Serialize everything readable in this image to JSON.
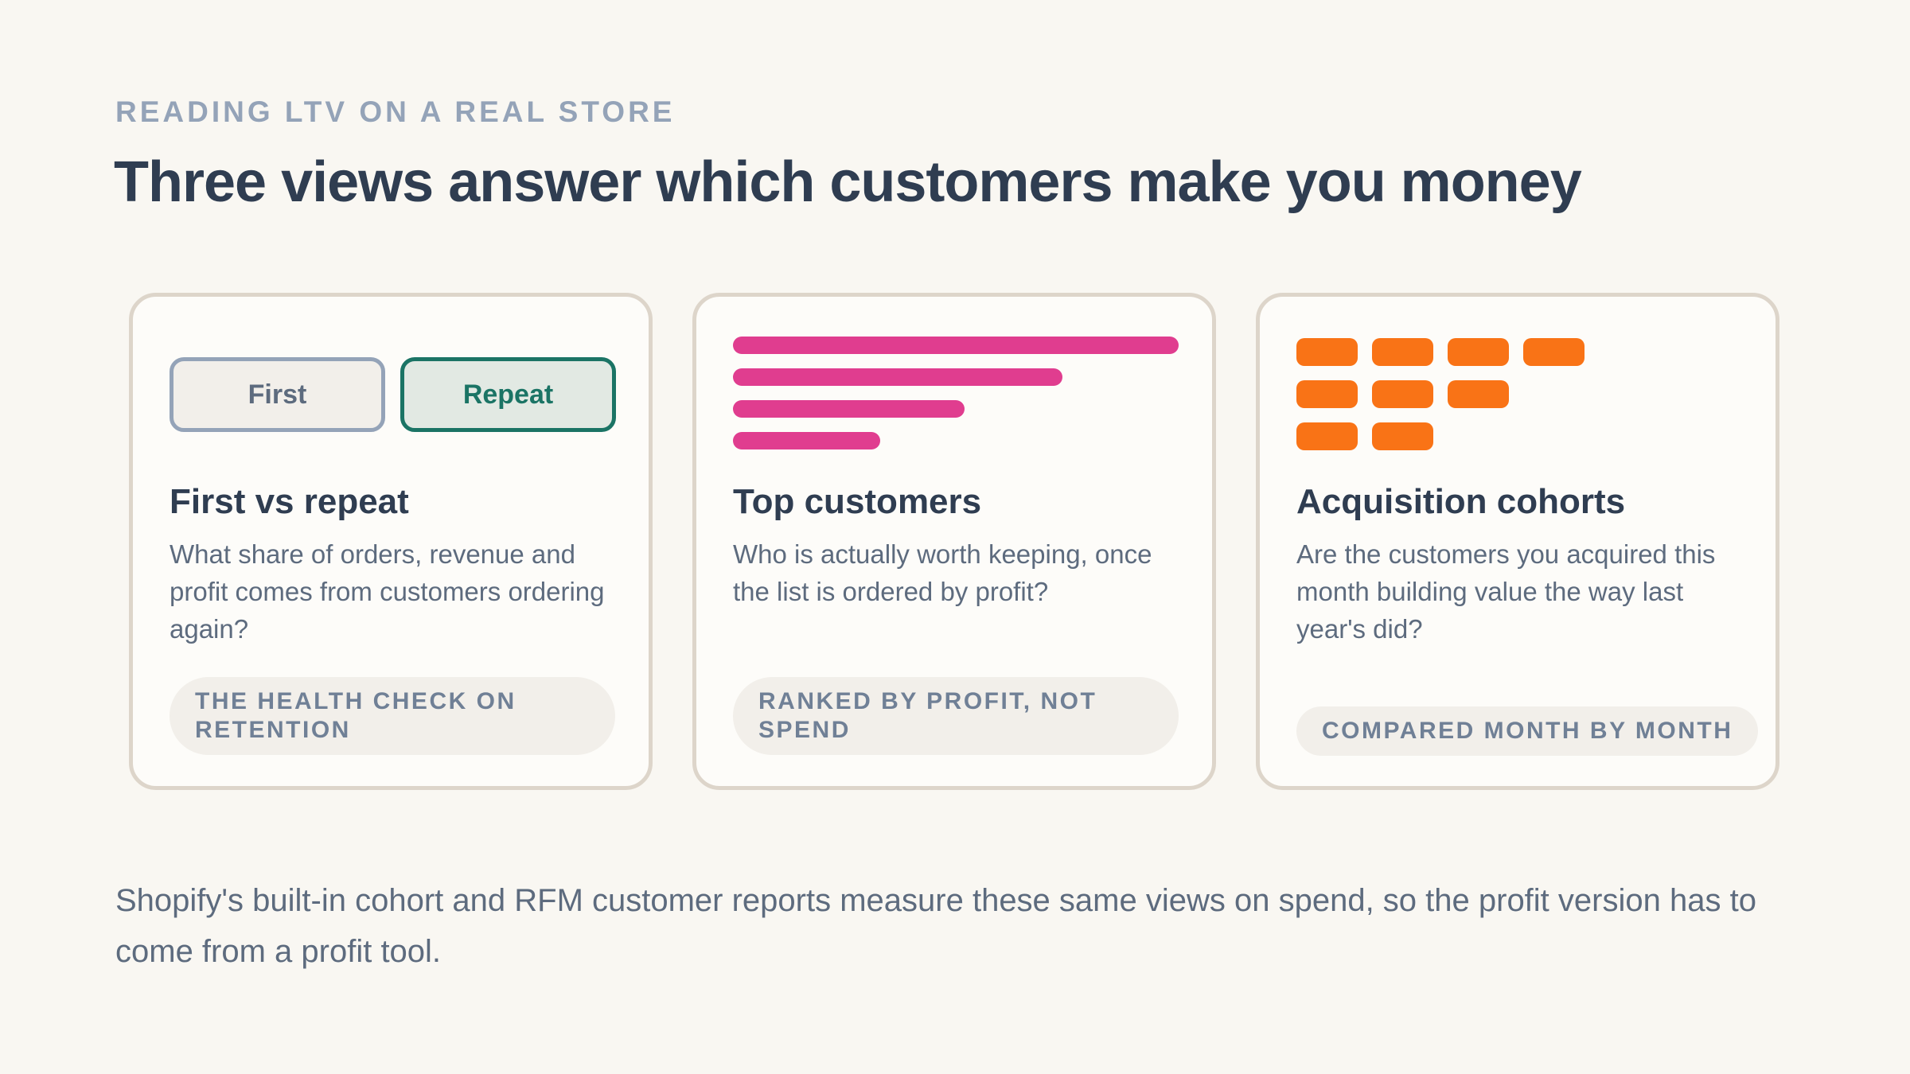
{
  "eyebrow": "READING LTV ON A REAL STORE",
  "headline": "Three views answer which customers make you money",
  "cards": [
    {
      "toggle": {
        "first_label": "First",
        "repeat_label": "Repeat"
      },
      "title": "First vs repeat",
      "description": "What share of orders, revenue and profit comes from customers ordering again?",
      "tag": "THE HEALTH CHECK ON RETENTION"
    },
    {
      "bar_fractions": [
        1.0,
        0.74,
        0.52,
        0.33
      ],
      "bar_color": "#e03d8f",
      "title": "Top customers",
      "description": "Who is actually worth keeping, once the list is ordered by profit?",
      "tag": "RANKED BY PROFIT, NOT SPEND"
    },
    {
      "cohort_rows": [
        4,
        3,
        2
      ],
      "tile_color": "#f97316",
      "title": "Acquisition cohorts",
      "description": "Are the customers you acquired this month building value the way last year's did?",
      "tag": "COMPARED MONTH BY MONTH"
    }
  ],
  "footer": "Shopify's built-in cohort and RFM customer reports measure these same views on spend, so the profit version has to come from a profit tool."
}
